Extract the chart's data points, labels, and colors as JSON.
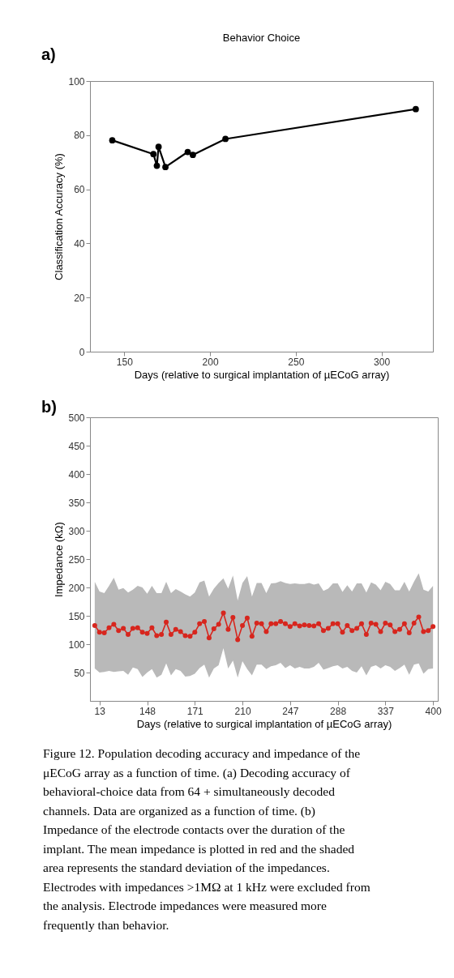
{
  "chart_data": [
    {
      "type": "line",
      "title": "Behavior Choice",
      "xlabel": "Days (relative to surgical implantation of µECoG array)",
      "ylabel": "Classification Accuracy (%)",
      "x": [
        143,
        167,
        169,
        170,
        174,
        187,
        190,
        209,
        320
      ],
      "series": [
        {
          "color": "#000000",
          "values": [
            78.1,
            73.0,
            68.7,
            75.7,
            68.2,
            73.8,
            72.7,
            78.6,
            89.6
          ]
        }
      ],
      "xlim": [
        130,
        330
      ],
      "xticks": [
        150,
        200,
        250,
        300
      ],
      "ylim": [
        0,
        100
      ],
      "yticks": [
        0,
        20,
        40,
        60,
        80,
        100
      ],
      "marker": "circle",
      "line_style": "solid",
      "annotations": [
        "a)"
      ]
    },
    {
      "type": "line",
      "xlabel": "Days (relative to surgical implantation of µECoG array)",
      "ylabel": "Impedance (kΩ)",
      "categories": [
        null,
        "13",
        null,
        null,
        null,
        null,
        null,
        null,
        null,
        null,
        null,
        "148",
        null,
        null,
        null,
        null,
        null,
        null,
        null,
        null,
        null,
        "171",
        null,
        null,
        null,
        null,
        null,
        null,
        null,
        null,
        null,
        "210",
        null,
        null,
        null,
        null,
        null,
        null,
        null,
        null,
        null,
        "247",
        null,
        null,
        null,
        null,
        null,
        null,
        null,
        null,
        null,
        "288",
        null,
        null,
        null,
        null,
        null,
        null,
        null,
        null,
        null,
        "337",
        null,
        null,
        null,
        null,
        null,
        null,
        null,
        null,
        null,
        "400"
      ],
      "series": [
        {
          "color": "#d7261e",
          "values": [
            133,
            121,
            120,
            129,
            135,
            124,
            128,
            117,
            128,
            129,
            121,
            119,
            129,
            115,
            117,
            139,
            117,
            126,
            122,
            115,
            114,
            121,
            136,
            140,
            111,
            127,
            135,
            155,
            126,
            147,
            108,
            133,
            146,
            114,
            137,
            136,
            122,
            136,
            136,
            140,
            136,
            131,
            136,
            132,
            134,
            133,
            132,
            136,
            124,
            128,
            136,
            136,
            121,
            133,
            124,
            128,
            136,
            117,
            137,
            135,
            122,
            137,
            134,
            122,
            126,
            136,
            120,
            137,
            148,
            122,
            124,
            131
          ],
          "upper": [
            210,
            193,
            190,
            203,
            217,
            196,
            199,
            191,
            196,
            203,
            200,
            189,
            203,
            190,
            190,
            210,
            190,
            197,
            193,
            188,
            184,
            191,
            209,
            212,
            184,
            198,
            208,
            216,
            198,
            221,
            177,
            208,
            220,
            184,
            208,
            208,
            190,
            207,
            208,
            211,
            208,
            206,
            207,
            206,
            206,
            208,
            205,
            207,
            194,
            198,
            207,
            207,
            192,
            204,
            193,
            207,
            207,
            191,
            209,
            205,
            195,
            210,
            206,
            195,
            195,
            210,
            193,
            210,
            225,
            196,
            193,
            203
          ],
          "lower": [
            57,
            50,
            51,
            53,
            51,
            52,
            53,
            46,
            59,
            56,
            42,
            50,
            56,
            41,
            46,
            66,
            45,
            56,
            53,
            43,
            44,
            48,
            58,
            64,
            41,
            57,
            63,
            93,
            57,
            71,
            41,
            70,
            56,
            45,
            64,
            64,
            56,
            61,
            63,
            67,
            58,
            63,
            57,
            60,
            57,
            57,
            60,
            67,
            55,
            58,
            61,
            63,
            57,
            60,
            53,
            50,
            61,
            45,
            60,
            63,
            57,
            63,
            60,
            53,
            58,
            64,
            46,
            64,
            66,
            48,
            56,
            57
          ]
        }
      ],
      "ylim": [
        0,
        500
      ],
      "yticks": [
        50,
        100,
        150,
        200,
        250,
        300,
        350,
        400,
        450,
        500
      ],
      "marker": "circle",
      "line_style": "solid",
      "annotations": [
        "b)",
        "Figure 12. Population decoding accuracy and impedance of the μECoG array as a function of time. (a) Decoding accuracy of behavioral-choice data from 64 + simultaneously decoded channels. Data are organized as a function of time. (b) Impedance of the electrode contacts over the duration of the implant. The mean impedance is plotted in red and the shaded area represents the standard deviation of the impedances. Electrodes with impedances >1MΩ at 1 kHz were excluded from the analysis. Electrode impedances were measured more frequently than behavior."
      ]
    }
  ]
}
